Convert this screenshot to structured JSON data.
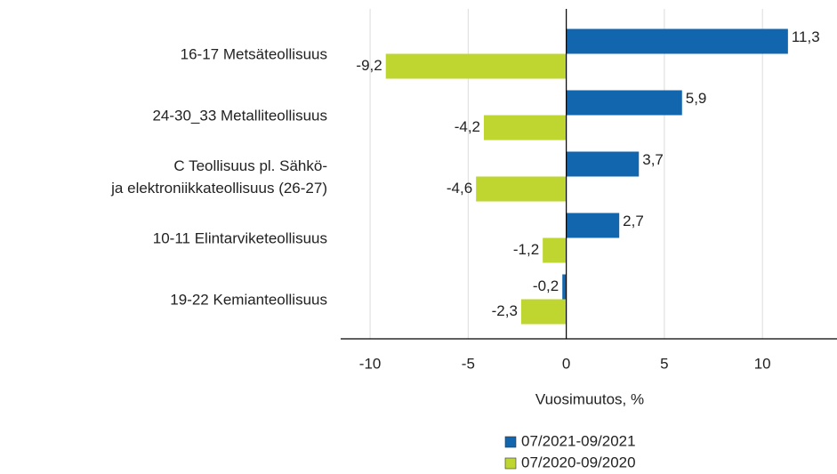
{
  "chart_data": {
    "type": "bar",
    "orientation": "horizontal",
    "x_label": "Vuosimuutos, %",
    "categories": [
      "16-17 Metsäteollisuus",
      "24-30_33 Metalliteollisuus",
      "C Teollisuus pl. Sähkö-\nja elektroniikkateollisuus (26-27)",
      "10-11 Elintarviketeollisuus",
      "19-22 Kemianteollisuus"
    ],
    "series": [
      {
        "name": "07/2021-09/2021",
        "color": "#1266ad",
        "values": [
          11.3,
          5.9,
          3.7,
          2.7,
          -0.2
        ],
        "value_labels": [
          "11,3",
          "5,9",
          "3,7",
          "2,7",
          "-0,2"
        ]
      },
      {
        "name": "07/2020-09/2020",
        "color": "#bfd630",
        "values": [
          -9.2,
          -4.2,
          -4.6,
          -1.2,
          -2.3
        ],
        "value_labels": [
          "-9,2",
          "-4,2",
          "-4,6",
          "-1,2",
          "-2,3"
        ]
      }
    ],
    "xlim": [
      -11.5,
      13.8
    ],
    "xticks": [
      -10,
      -5,
      0,
      5,
      10
    ],
    "grid": true
  }
}
